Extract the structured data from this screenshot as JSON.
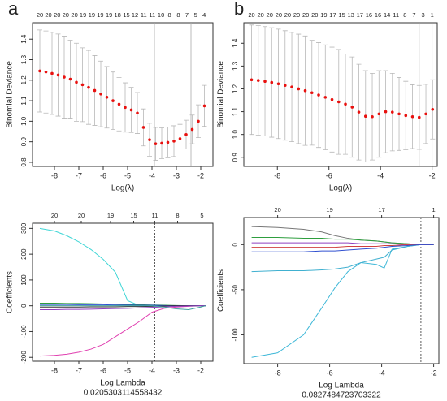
{
  "chart_data": [
    {
      "type": "errorbar",
      "letter": "a",
      "ylabel": "Binomial Deviance",
      "xlabel": "Log(λ)",
      "color": "#e8110f",
      "error_color": "#b8b8b8",
      "x": [
        -8.6,
        -8.35,
        -8.1,
        -7.85,
        -7.6,
        -7.35,
        -7.1,
        -6.85,
        -6.6,
        -6.35,
        -6.1,
        -5.85,
        -5.6,
        -5.35,
        -5.1,
        -4.85,
        -4.6,
        -4.35,
        -4.1,
        -3.85,
        -3.6,
        -3.35,
        -3.1,
        -2.85,
        -2.6,
        -2.35,
        -2.1,
        -1.85
      ],
      "values": [
        1.245,
        1.24,
        1.233,
        1.225,
        1.215,
        1.205,
        1.19,
        1.178,
        1.165,
        1.15,
        1.133,
        1.117,
        1.1,
        1.083,
        1.067,
        1.055,
        1.04,
        0.97,
        0.91,
        0.89,
        0.893,
        0.897,
        0.903,
        0.915,
        0.935,
        0.96,
        1.0,
        1.075
      ],
      "errors": [
        0.2,
        0.2,
        0.2,
        0.2,
        0.2,
        0.19,
        0.19,
        0.18,
        0.18,
        0.17,
        0.16,
        0.15,
        0.14,
        0.13,
        0.12,
        0.11,
        0.1,
        0.09,
        0.08,
        0.08,
        0.075,
        0.075,
        0.075,
        0.07,
        0.07,
        0.07,
        0.08,
        0.1
      ],
      "xlim": [
        -8.9,
        -1.5
      ],
      "xticks": [
        -8,
        -7,
        -6,
        -5,
        -4,
        -3,
        -2
      ],
      "ylim": [
        0.78,
        1.48
      ],
      "yticks": [
        0.8,
        0.9,
        {
          "value": 1,
          "label": "1.0"
        },
        1.1,
        1.2,
        1.3,
        1.4
      ],
      "x2ticks": [
        {
          "value": -8.6,
          "label": "20"
        },
        {
          "value": -8.25,
          "label": "20"
        },
        {
          "value": -7.89,
          "label": "20"
        },
        {
          "value": -7.54,
          "label": "20"
        },
        {
          "value": -7.18,
          "label": "20"
        },
        {
          "value": -6.83,
          "label": "19"
        },
        {
          "value": -6.47,
          "label": "19"
        },
        {
          "value": -6.12,
          "label": "19"
        },
        {
          "value": -5.76,
          "label": "19"
        },
        {
          "value": -5.41,
          "label": "18"
        },
        {
          "value": -5.05,
          "label": "15"
        },
        {
          "value": -4.7,
          "label": "12"
        },
        {
          "value": -4.34,
          "label": "11"
        },
        {
          "value": -3.99,
          "label": "11"
        },
        {
          "value": -3.63,
          "label": "10"
        },
        {
          "value": -3.28,
          "label": "8"
        },
        {
          "value": -2.92,
          "label": "8"
        },
        {
          "value": -2.57,
          "label": "7"
        },
        {
          "value": -2.21,
          "label": "5"
        },
        {
          "value": -1.86,
          "label": "4"
        }
      ],
      "vlines": [
        -3.9,
        -2.4
      ]
    },
    {
      "type": "errorbar",
      "letter": "b",
      "ylabel": "Binomial Deviance",
      "xlabel": "Log(λ)",
      "color": "#e8110f",
      "error_color": "#b8b8b8",
      "x": [
        -9,
        -8.74,
        -8.48,
        -8.22,
        -7.96,
        -7.7,
        -7.44,
        -7.18,
        -6.92,
        -6.66,
        -6.4,
        -6.14,
        -5.88,
        -5.62,
        -5.36,
        -5.1,
        -4.84,
        -4.58,
        -4.32,
        -4.06,
        -3.8,
        -3.54,
        -3.28,
        -3.02,
        -2.76,
        -2.5,
        -2.24,
        -1.98
      ],
      "values": [
        1.24,
        1.237,
        1.233,
        1.228,
        1.222,
        1.215,
        1.208,
        1.2,
        1.192,
        1.183,
        1.173,
        1.163,
        1.153,
        1.143,
        1.133,
        1.12,
        1.098,
        1.08,
        1.078,
        1.09,
        1.1,
        1.098,
        1.09,
        1.083,
        1.078,
        1.075,
        1.09,
        1.11
      ],
      "errors": [
        0.24,
        0.24,
        0.24,
        0.24,
        0.24,
        0.24,
        0.24,
        0.24,
        0.24,
        0.23,
        0.23,
        0.23,
        0.23,
        0.23,
        0.22,
        0.22,
        0.21,
        0.2,
        0.19,
        0.19,
        0.18,
        0.17,
        0.16,
        0.15,
        0.14,
        0.14,
        0.13,
        0.13
      ],
      "xlim": [
        -9.3,
        -1.8
      ],
      "xticks": [
        -8,
        -6,
        -4,
        -2
      ],
      "ylim": [
        0.86,
        1.49
      ],
      "yticks": [
        0.9,
        {
          "value": 1,
          "label": "1.0"
        },
        1.1,
        1.2,
        1.3,
        1.4
      ],
      "x2ticks": [
        {
          "value": -9,
          "label": "20"
        },
        {
          "value": -8.65,
          "label": "20"
        },
        {
          "value": -8.3,
          "label": "20"
        },
        {
          "value": -7.95,
          "label": "20"
        },
        {
          "value": -7.6,
          "label": "20"
        },
        {
          "value": -7.25,
          "label": "20"
        },
        {
          "value": -6.9,
          "label": "20"
        },
        {
          "value": -6.55,
          "label": "20"
        },
        {
          "value": -6.2,
          "label": "19"
        },
        {
          "value": -5.85,
          "label": "17"
        },
        {
          "value": -5.5,
          "label": "15"
        },
        {
          "value": -5.15,
          "label": "13"
        },
        {
          "value": -4.8,
          "label": "17"
        },
        {
          "value": -4.45,
          "label": "16"
        },
        {
          "value": -4.1,
          "label": "16"
        },
        {
          "value": -3.75,
          "label": "14"
        },
        {
          "value": -3.4,
          "label": "11"
        },
        {
          "value": -3.05,
          "label": "8"
        },
        {
          "value": -2.7,
          "label": "7"
        },
        {
          "value": -2.35,
          "label": "3"
        },
        {
          "value": -2,
          "label": "1"
        }
      ],
      "vlines": [
        -2.5,
        -2
      ]
    },
    {
      "type": "line",
      "ylabel": "Coefficients",
      "xlabel": "Log Lambda",
      "annotation": "0.0205303114558432",
      "x": [
        -8.6,
        -8,
        -7.5,
        -7,
        -6.5,
        -6,
        -5.5,
        -5,
        -4.5,
        -4,
        -3.5,
        -3,
        -2.5,
        -2,
        -1.8
      ],
      "series": [
        {
          "color": "#3fd6d6",
          "values": [
            300,
            290,
            272,
            248,
            218,
            180,
            130,
            20,
            0,
            0,
            0,
            0,
            0,
            0,
            0
          ]
        },
        {
          "color": "#e040b0",
          "values": [
            -195,
            -192,
            -188,
            -180,
            -168,
            -150,
            -120,
            -90,
            -60,
            -25,
            -10,
            -5,
            -2,
            0,
            0
          ]
        },
        {
          "color": "#2e9e3e",
          "values": [
            10,
            10,
            9,
            9,
            8,
            7,
            6,
            5,
            4,
            3,
            2,
            1,
            0,
            0,
            0
          ]
        },
        {
          "color": "#3050d0",
          "values": [
            5,
            5,
            5,
            4,
            4,
            4,
            3,
            3,
            2,
            2,
            1,
            0,
            0,
            0,
            0
          ]
        },
        {
          "color": "#333333",
          "values": [
            -5,
            -5,
            -5,
            -5,
            -4,
            -4,
            -4,
            -3,
            -3,
            -2,
            -1,
            0,
            0,
            0,
            0
          ]
        },
        {
          "color": "#9040c0",
          "values": [
            -15,
            -15,
            -14,
            -14,
            -13,
            -12,
            -11,
            -10,
            -8,
            -6,
            -4,
            -2,
            -1,
            0,
            0
          ]
        },
        {
          "color": "#40a0a0",
          "values": [
            0,
            0,
            0,
            0,
            0,
            0,
            0,
            0,
            0,
            0,
            -5,
            -12,
            -15,
            -5,
            0
          ]
        }
      ],
      "xlim": [
        -8.9,
        -1.5
      ],
      "xticks": [
        -8,
        -7,
        -6,
        -5,
        -4,
        -3,
        -2
      ],
      "ylim": [
        -215,
        320
      ],
      "yticks": [
        -200,
        -100,
        0,
        100,
        200,
        300
      ],
      "x2ticks": [
        {
          "value": -8,
          "label": "20"
        },
        {
          "value": -6.9,
          "label": "20"
        },
        {
          "value": -5.7,
          "label": "19"
        },
        {
          "value": -4.75,
          "label": "15"
        },
        {
          "value": -3.886,
          "label": "11"
        },
        {
          "value": -2.95,
          "label": "8"
        },
        {
          "value": -1.95,
          "label": "5"
        }
      ],
      "vlines": [
        -3.886
      ]
    },
    {
      "type": "line",
      "ylabel": "Coefficients",
      "xlabel": "Log Lambda",
      "annotation": "0.0827484723703322",
      "x": [
        -9,
        -8,
        -7,
        -6.3,
        -5.8,
        -5.3,
        -4.8,
        -4.2,
        -3.9,
        -3.6,
        -3,
        -2.5,
        -2
      ],
      "series": [
        {
          "color": "#3fb8d8",
          "values": [
            -125,
            -120,
            -100,
            -70,
            -48,
            -30,
            -20,
            -22,
            -26,
            -5,
            -2,
            0,
            0
          ]
        },
        {
          "color": "#40b0d0",
          "values": [
            -30,
            -29,
            -29,
            -28,
            -27,
            -25,
            -20,
            -16,
            -14,
            -6,
            -2,
            0,
            0
          ]
        },
        {
          "color": "#777777",
          "values": [
            20,
            19,
            17,
            14,
            10,
            7,
            5,
            4,
            3,
            2,
            1,
            0,
            0
          ]
        },
        {
          "color": "#2e9e3e",
          "values": [
            8,
            8,
            7,
            7,
            6,
            6,
            5,
            4,
            3,
            2,
            1,
            0,
            0
          ]
        },
        {
          "color": "#9040c0",
          "values": [
            2,
            2,
            2,
            2,
            2,
            2,
            1,
            1,
            1,
            1,
            0,
            0,
            0
          ]
        },
        {
          "color": "#d04040",
          "values": [
            -3,
            -3,
            -3,
            -3,
            -3,
            -2,
            -2,
            -2,
            -1,
            -1,
            0,
            0,
            0
          ]
        },
        {
          "color": "#3050d0",
          "values": [
            -8,
            -8,
            -8,
            -7,
            -7,
            -6,
            -5,
            -4,
            -3,
            -2,
            -1,
            0,
            0
          ]
        }
      ],
      "xlim": [
        -9.3,
        -1.8
      ],
      "xticks": [
        -8,
        -6,
        -4,
        -2
      ],
      "ylim": [
        -132,
        30
      ],
      "yticks": [
        -100,
        -50,
        0
      ],
      "x2ticks": [
        {
          "value": -8,
          "label": "20"
        },
        {
          "value": -6,
          "label": "19"
        },
        {
          "value": -4,
          "label": "17"
        },
        {
          "value": -2,
          "label": "1"
        }
      ],
      "vlines": [
        -2.49
      ]
    }
  ]
}
